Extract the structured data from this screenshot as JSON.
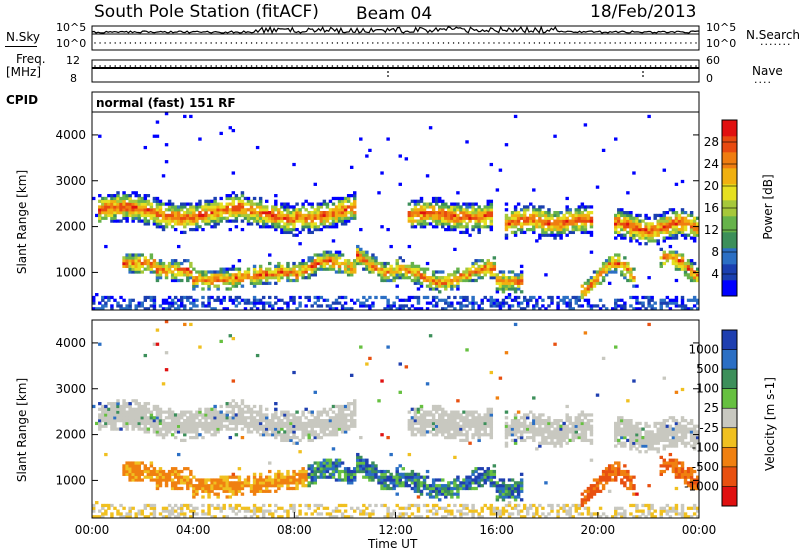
{
  "header": {
    "station": "South Pole Station (fitACF)",
    "beam": "Beam 04",
    "date": "18/Feb/2013"
  },
  "top_panels": {
    "nsky_label": "N.Sky",
    "nsky_tick_hi": "10^5",
    "nsky_tick_lo": "10^0",
    "nsearch_label": "N.Search",
    "nsearch_tick_hi": "10^5",
    "nsearch_tick_lo": "10^0",
    "freq_label_1": "Freq.",
    "freq_label_2": "[MHz]",
    "freq_tick_hi": "12",
    "freq_tick_lo": "8",
    "nave_label": "Nave",
    "nave_tick_hi": "60",
    "nave_tick_lo": "0",
    "cpid_label": "CPID",
    "cpid_value": "normal (fast) 151 RF"
  },
  "chart_data": [
    {
      "type": "heatmap",
      "name": "Power",
      "ylabel": "Slant Range [km]",
      "xlabel": "",
      "y_ticks": [
        "1000",
        "2000",
        "3000",
        "4000"
      ],
      "ylim": [
        180,
        4500
      ],
      "x_range_hours": [
        0,
        24
      ],
      "colorbar": {
        "label": "Power [dB]",
        "ticks": [
          "4",
          "8",
          "12",
          "16",
          "20",
          "24",
          "28"
        ],
        "colors": [
          "#0000ff",
          "#1a3fb0",
          "#2b6fc4",
          "#3c8f5a",
          "#66b34a",
          "#a6c83a",
          "#e6e020",
          "#f0b010",
          "#f07d10",
          "#e84a10",
          "#e01010"
        ]
      }
    },
    {
      "type": "heatmap",
      "name": "Velocity",
      "ylabel": "Slant Range [km]",
      "xlabel": "Time UT",
      "x_ticks": [
        "00:00",
        "04:00",
        "08:00",
        "12:00",
        "16:00",
        "20:00",
        "00:00"
      ],
      "y_ticks": [
        "1000",
        "2000",
        "3000",
        "4000"
      ],
      "ylim": [
        180,
        4500
      ],
      "x_range_hours": [
        0,
        24
      ],
      "colorbar": {
        "label": "Velocity [m s-1]",
        "ticks": [
          "1000",
          "500",
          "100",
          "25",
          "-25",
          "-100",
          "-500",
          "-1000"
        ],
        "colors": [
          "#1f3fb0",
          "#2b6fc4",
          "#3c8f5a",
          "#66c040",
          "#c8c8c0",
          "#f0c020",
          "#f08010",
          "#e85010",
          "#e01010"
        ]
      }
    }
  ],
  "colors": {
    "ground_scatter": "#c8c8c0",
    "axis": "#000000"
  }
}
